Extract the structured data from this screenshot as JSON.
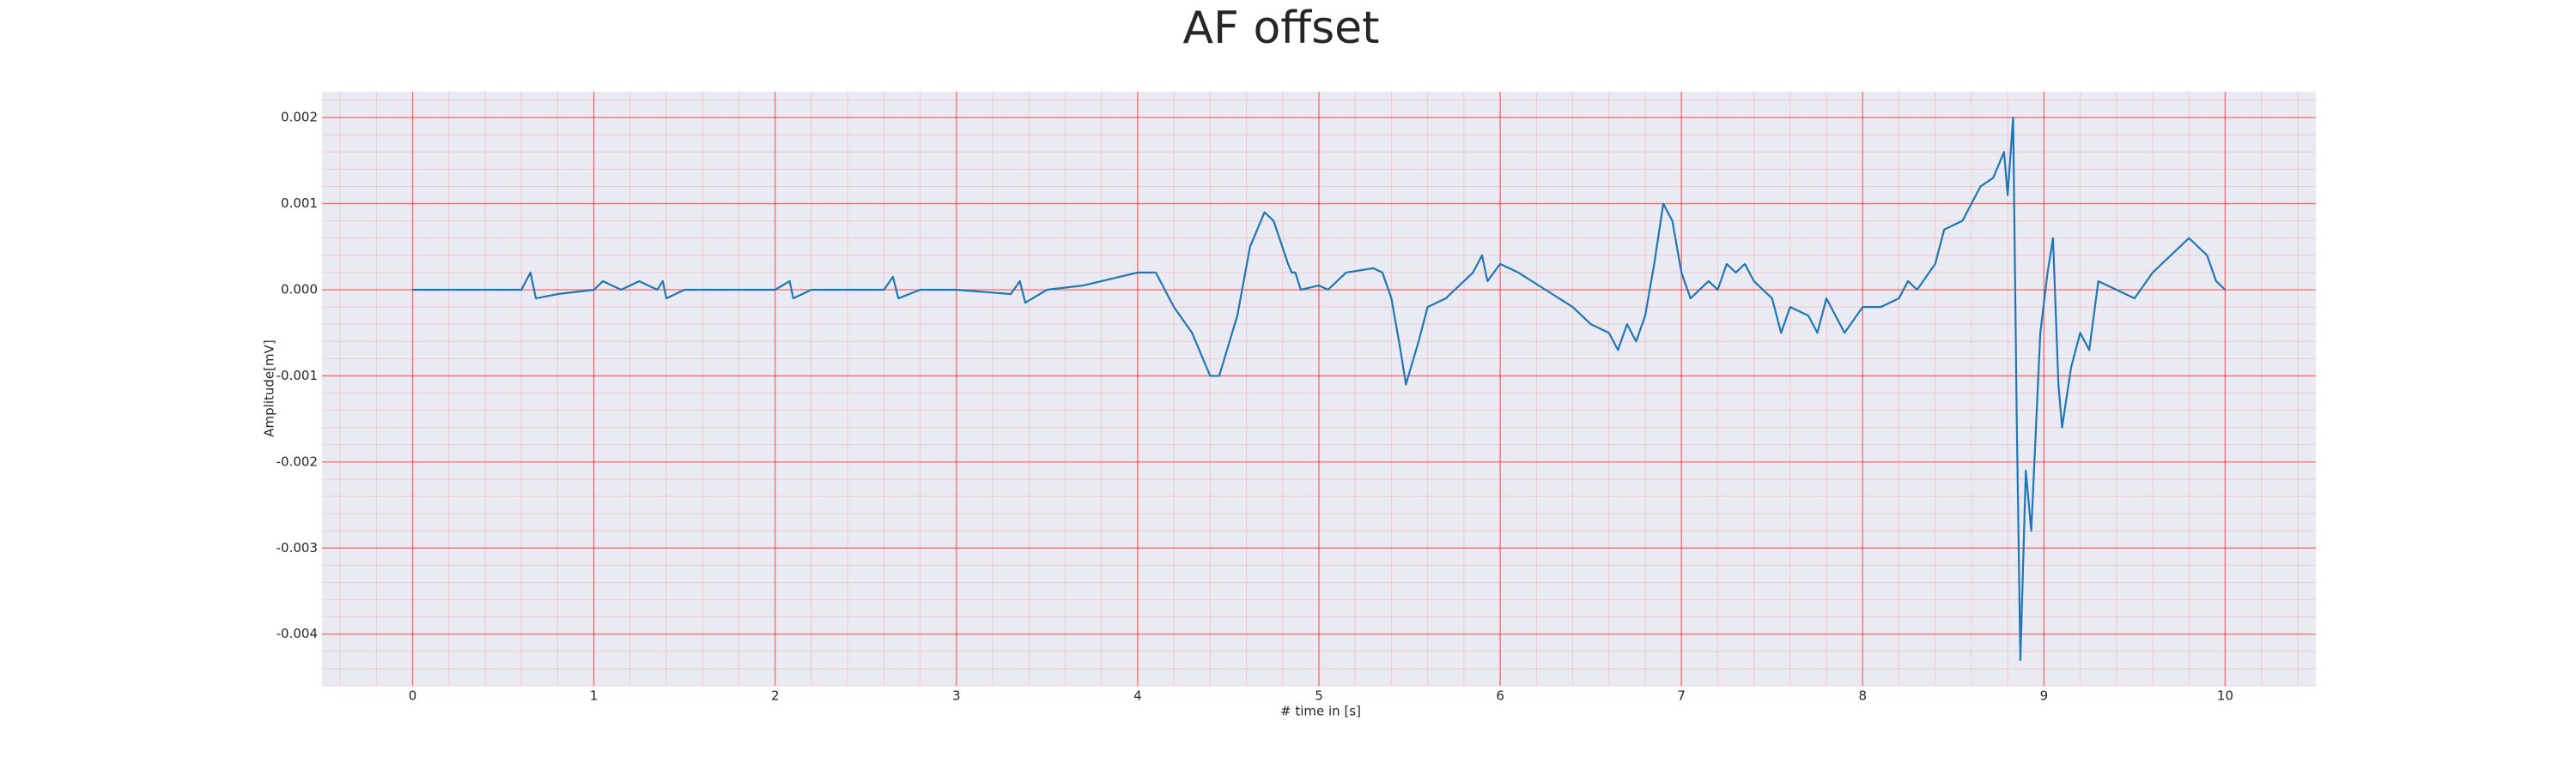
{
  "chart_data": {
    "type": "line",
    "title": "AF offset",
    "x_label": "# time in [s]",
    "y_label": "Amplitude[mV]",
    "x": [
      0,
      0.1,
      0.4,
      0.6,
      0.65,
      0.68,
      0.8,
      1.0,
      1.05,
      1.15,
      1.25,
      1.35,
      1.38,
      1.4,
      1.5,
      2.0,
      2.08,
      2.1,
      2.2,
      2.6,
      2.65,
      2.68,
      2.8,
      3.0,
      3.3,
      3.35,
      3.38,
      3.5,
      3.7,
      3.9,
      4.0,
      4.1,
      4.2,
      4.3,
      4.4,
      4.45,
      4.55,
      4.62,
      4.7,
      4.75,
      4.83,
      4.85,
      4.87,
      4.9,
      5.0,
      5.05,
      5.15,
      5.3,
      5.35,
      5.4,
      5.45,
      5.48,
      5.55,
      5.6,
      5.7,
      5.75,
      5.85,
      5.9,
      5.93,
      6.0,
      6.1,
      6.25,
      6.4,
      6.5,
      6.6,
      6.65,
      6.7,
      6.75,
      6.8,
      6.85,
      6.9,
      6.95,
      7.0,
      7.05,
      7.15,
      7.2,
      7.25,
      7.3,
      7.35,
      7.4,
      7.5,
      7.55,
      7.6,
      7.7,
      7.75,
      7.8,
      7.9,
      8.0,
      8.1,
      8.2,
      8.25,
      8.3,
      8.4,
      8.45,
      8.55,
      8.65,
      8.72,
      8.78,
      8.8,
      8.83,
      8.85,
      8.87,
      8.9,
      8.93,
      8.98,
      9.02,
      9.05,
      9.08,
      9.1,
      9.15,
      9.2,
      9.25,
      9.3,
      9.4,
      9.5,
      9.6,
      9.7,
      9.8,
      9.9,
      9.95,
      10.0
    ],
    "series": [
      {
        "name": "AF offset",
        "color": "#1f77b4",
        "values": [
          0,
          0,
          0,
          0,
          0.0002,
          -0.0001,
          -5e-05,
          0,
          0.0001,
          0,
          0.0001,
          0,
          0.0001,
          -0.0001,
          0,
          0,
          0.0001,
          -0.0001,
          0,
          0,
          0.00015,
          -0.0001,
          0,
          0,
          -5e-05,
          0.0001,
          -0.00015,
          0,
          5e-05,
          0.00015,
          0.0002,
          0.0002,
          -0.0002,
          -0.0005,
          -0.001,
          -0.001,
          -0.0003,
          0.0005,
          0.0009,
          0.0008,
          0.0003,
          0.0002,
          0.0002,
          0,
          5e-05,
          0,
          0.0002,
          0.00025,
          0.0002,
          -0.0001,
          -0.0007,
          -0.0011,
          -0.0006,
          -0.0002,
          -0.0001,
          0,
          0.0002,
          0.0004,
          0.0001,
          0.0003,
          0.0002,
          0,
          -0.0002,
          -0.0004,
          -0.0005,
          -0.0007,
          -0.0004,
          -0.0006,
          -0.0003,
          0.0003,
          0.001,
          0.0008,
          0.0002,
          -0.0001,
          0.0001,
          0,
          0.0003,
          0.0002,
          0.0003,
          0.0001,
          -0.0001,
          -0.0005,
          -0.0002,
          -0.0003,
          -0.0005,
          -0.0001,
          -0.0005,
          -0.0002,
          -0.0002,
          -0.0001,
          0.0001,
          0,
          0.0003,
          0.0007,
          0.0008,
          0.0012,
          0.0013,
          0.0016,
          0.0011,
          0.002,
          -0.0015,
          -0.0043,
          -0.0021,
          -0.0028,
          -0.0005,
          0.0002,
          0.0006,
          -0.0011,
          -0.0016,
          -0.0009,
          -0.0005,
          -0.0007,
          0.0001,
          0,
          -0.0001,
          0.0002,
          0.0004,
          0.0006,
          0.0004,
          0.0001,
          0
        ]
      }
    ],
    "xlim": [
      -0.5,
      10.5
    ],
    "xticks": [
      0,
      1,
      2,
      3,
      4,
      5,
      6,
      7,
      8,
      9,
      10
    ],
    "ylim": [
      -0.0046,
      0.0023
    ],
    "yticks": [
      -0.004,
      -0.003,
      -0.002,
      -0.001,
      {
        "value": 0,
        "label": "0.000"
      },
      0.001,
      0.002
    ],
    "grid": true,
    "minor_grid": true,
    "grid_color": "#ff0000",
    "background": "#eaeaf2"
  }
}
